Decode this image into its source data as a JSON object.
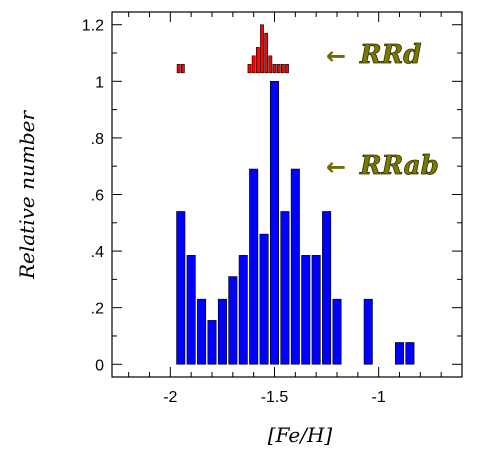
{
  "chart_data": {
    "type": "bar",
    "xlabel": "[Fe/H]",
    "ylabel": "Relative number",
    "xlim": [
      -2.28,
      -0.6
    ],
    "ylim": [
      -0.045,
      1.245
    ],
    "x_ticks": [
      {
        "value": -2.0,
        "label": "-2"
      },
      {
        "value": -1.5,
        "label": "-1.5"
      },
      {
        "value": -1.0,
        "label": "-1"
      }
    ],
    "y_ticks": [
      {
        "value": 0.0,
        "label": "0"
      },
      {
        "value": 0.2,
        "label": ".2"
      },
      {
        "value": 0.4,
        "label": ".4"
      },
      {
        "value": 0.6,
        "label": ".6"
      },
      {
        "value": 0.8,
        "label": ".8"
      },
      {
        "value": 1.0,
        "label": "1"
      },
      {
        "value": 1.2,
        "label": "1.2"
      }
    ],
    "bin_width": 0.05,
    "series": [
      {
        "name": "RRab",
        "color": "#0000ff",
        "bars": [
          {
            "x": -1.95,
            "y": 0.54
          },
          {
            "x": -1.9,
            "y": 0.385
          },
          {
            "x": -1.85,
            "y": 0.23
          },
          {
            "x": -1.8,
            "y": 0.155
          },
          {
            "x": -1.75,
            "y": 0.23
          },
          {
            "x": -1.7,
            "y": 0.31
          },
          {
            "x": -1.65,
            "y": 0.385
          },
          {
            "x": -1.6,
            "y": 0.69
          },
          {
            "x": -1.55,
            "y": 0.46
          },
          {
            "x": -1.5,
            "y": 1.0
          },
          {
            "x": -1.45,
            "y": 0.54
          },
          {
            "x": -1.4,
            "y": 0.69
          },
          {
            "x": -1.35,
            "y": 0.385
          },
          {
            "x": -1.3,
            "y": 0.385
          },
          {
            "x": -1.25,
            "y": 0.54
          },
          {
            "x": -1.2,
            "y": 0.23
          },
          {
            "x": -1.05,
            "y": 0.23
          },
          {
            "x": -0.9,
            "y": 0.077
          },
          {
            "x": -0.85,
            "y": 0.077
          }
        ]
      },
      {
        "name": "RRd",
        "color": "#ff0000",
        "base": 1.03,
        "bin_width": 0.02,
        "bars": [
          {
            "x": -1.96,
            "y": 0.03
          },
          {
            "x": -1.94,
            "y": 0.03
          },
          {
            "x": -1.62,
            "y": 0.03
          },
          {
            "x": -1.6,
            "y": 0.06
          },
          {
            "x": -1.58,
            "y": 0.09
          },
          {
            "x": -1.56,
            "y": 0.17
          },
          {
            "x": -1.54,
            "y": 0.14
          },
          {
            "x": -1.52,
            "y": 0.06
          },
          {
            "x": -1.5,
            "y": 0.03
          },
          {
            "x": -1.48,
            "y": 0.03
          },
          {
            "x": -1.46,
            "y": 0.03
          },
          {
            "x": -1.44,
            "y": 0.03
          }
        ]
      }
    ],
    "annotations": [
      {
        "arrow": "←",
        "text": "RRd",
        "color": "#7a7a00"
      },
      {
        "arrow": "←",
        "text": "RRab",
        "color": "#7a7a00"
      }
    ]
  }
}
